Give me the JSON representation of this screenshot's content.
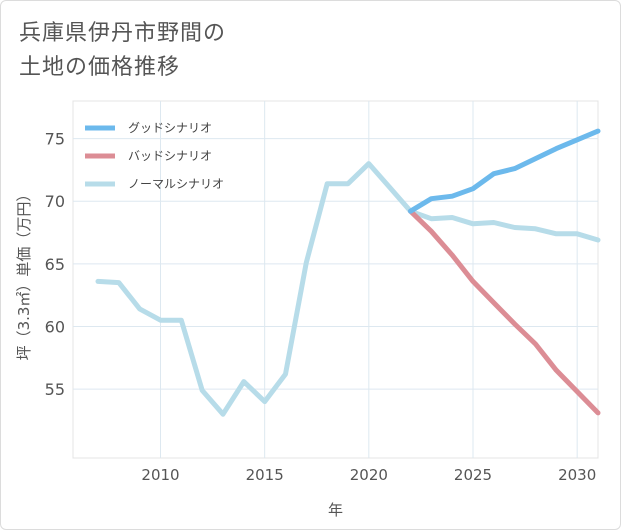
{
  "title": {
    "line1": "兵庫県伊丹市野間の",
    "line2": "土地の価格推移"
  },
  "chart_data": {
    "type": "line",
    "xlabel": "年",
    "ylabel": "坪（3.3㎡）単価（万円）",
    "xlim": [
      2005.8,
      2031
    ],
    "ylim": [
      49.5,
      78
    ],
    "xticks": [
      2010,
      2015,
      2020,
      2025,
      2030
    ],
    "yticks": [
      55,
      60,
      65,
      70,
      75
    ],
    "grid": true,
    "legend_position": "top-left",
    "series": [
      {
        "name": "グッドシナリオ",
        "color": "#6cb9ec",
        "x": [
          2022,
          2023,
          2024,
          2025,
          2026,
          2027,
          2028,
          2029,
          2030,
          2031
        ],
        "y": [
          69.2,
          70.2,
          70.4,
          71.0,
          72.2,
          72.6,
          73.4,
          74.2,
          74.9,
          75.6
        ]
      },
      {
        "name": "バッドシナリオ",
        "color": "#dc8d95",
        "x": [
          2022,
          2023,
          2024,
          2025,
          2026,
          2027,
          2028,
          2029,
          2030,
          2031
        ],
        "y": [
          69.2,
          67.6,
          65.7,
          63.6,
          61.9,
          60.2,
          58.6,
          56.5,
          54.8,
          53.1
        ]
      },
      {
        "name": "ノーマルシナリオ",
        "color": "#b7dce9",
        "x": [
          2007,
          2008,
          2009,
          2010,
          2011,
          2012,
          2013,
          2014,
          2015,
          2016,
          2017,
          2018,
          2019,
          2020,
          2021,
          2022,
          2023,
          2024,
          2025,
          2026,
          2027,
          2028,
          2029,
          2030,
          2031
        ],
        "y": [
          63.6,
          63.5,
          61.4,
          60.5,
          60.5,
          54.9,
          53.0,
          55.6,
          54.0,
          56.2,
          65.1,
          71.4,
          71.4,
          73.0,
          71.1,
          69.2,
          68.6,
          68.7,
          68.2,
          68.3,
          67.9,
          67.8,
          67.4,
          67.4,
          66.9
        ]
      }
    ]
  }
}
